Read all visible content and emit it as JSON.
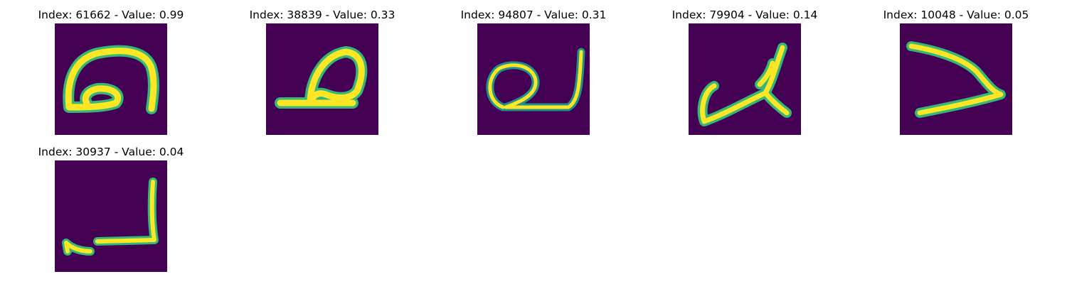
{
  "grid": {
    "items": [
      {
        "title": "Index: 61662 - Value: 0.99",
        "glyph": "glyph-0"
      },
      {
        "title": "Index: 38839 - Value: 0.33",
        "glyph": "glyph-1"
      },
      {
        "title": "Index: 94807 - Value: 0.31",
        "glyph": "glyph-2"
      },
      {
        "title": "Index: 79904 - Value: 0.14",
        "glyph": "glyph-3"
      },
      {
        "title": "Index: 10048 - Value: 0.05",
        "glyph": "glyph-4"
      },
      {
        "title": "Index: 30937 - Value: 0.04",
        "glyph": "glyph-5"
      }
    ]
  },
  "colors": {
    "background": "#440154",
    "stroke_core": "#fde725",
    "stroke_edge": "#35b779",
    "stroke_mid": "#21918c"
  }
}
